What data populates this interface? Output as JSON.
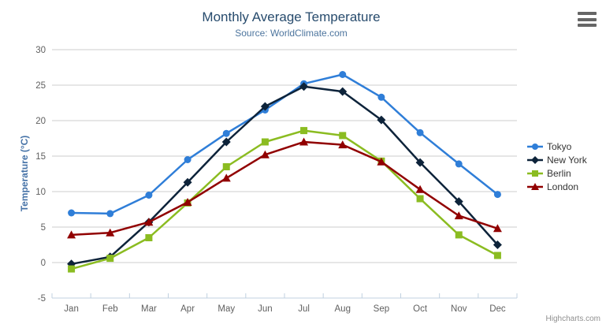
{
  "chart": {
    "title": "Monthly Average Temperature",
    "subtitle": "Source: WorldClimate.com",
    "credits": "Highcharts.com"
  },
  "chart_data": {
    "type": "line",
    "title": "Monthly Average Temperature",
    "subtitle": "Source: WorldClimate.com",
    "xlabel": "",
    "ylabel": "Temperature (°C)",
    "ylim": [
      -5,
      30
    ],
    "yticks": [
      -5,
      0,
      5,
      10,
      15,
      20,
      25,
      30
    ],
    "grid": true,
    "legend_position": "right",
    "categories": [
      "Jan",
      "Feb",
      "Mar",
      "Apr",
      "May",
      "Jun",
      "Jul",
      "Aug",
      "Sep",
      "Oct",
      "Nov",
      "Dec"
    ],
    "series": [
      {
        "name": "Tokyo",
        "marker": "circle",
        "color": "#2f7ed8",
        "values": [
          7.0,
          6.9,
          9.5,
          14.5,
          18.2,
          21.5,
          25.2,
          26.5,
          23.3,
          18.3,
          13.9,
          9.6
        ]
      },
      {
        "name": "New York",
        "marker": "diamond",
        "color": "#0d233a",
        "values": [
          -0.2,
          0.8,
          5.7,
          11.3,
          17.0,
          22.0,
          24.8,
          24.1,
          20.1,
          14.1,
          8.6,
          2.5
        ]
      },
      {
        "name": "Berlin",
        "marker": "square",
        "color": "#8bbc21",
        "values": [
          -0.9,
          0.6,
          3.5,
          8.4,
          13.5,
          17.0,
          18.6,
          17.9,
          14.3,
          9.0,
          3.9,
          1.0
        ]
      },
      {
        "name": "London",
        "marker": "triangle",
        "color": "#910000",
        "values": [
          3.9,
          4.2,
          5.7,
          8.5,
          11.9,
          15.2,
          17.0,
          16.6,
          14.2,
          10.3,
          6.6,
          4.8
        ]
      }
    ]
  },
  "style_colors": {
    "grid_line": "#cccccc",
    "axis_line": "#c0d0e0",
    "tick_label": "#606060",
    "title_text": "#274b6d",
    "subtitle_text": "#4d759e",
    "y_axis_title": "#4572a7"
  }
}
